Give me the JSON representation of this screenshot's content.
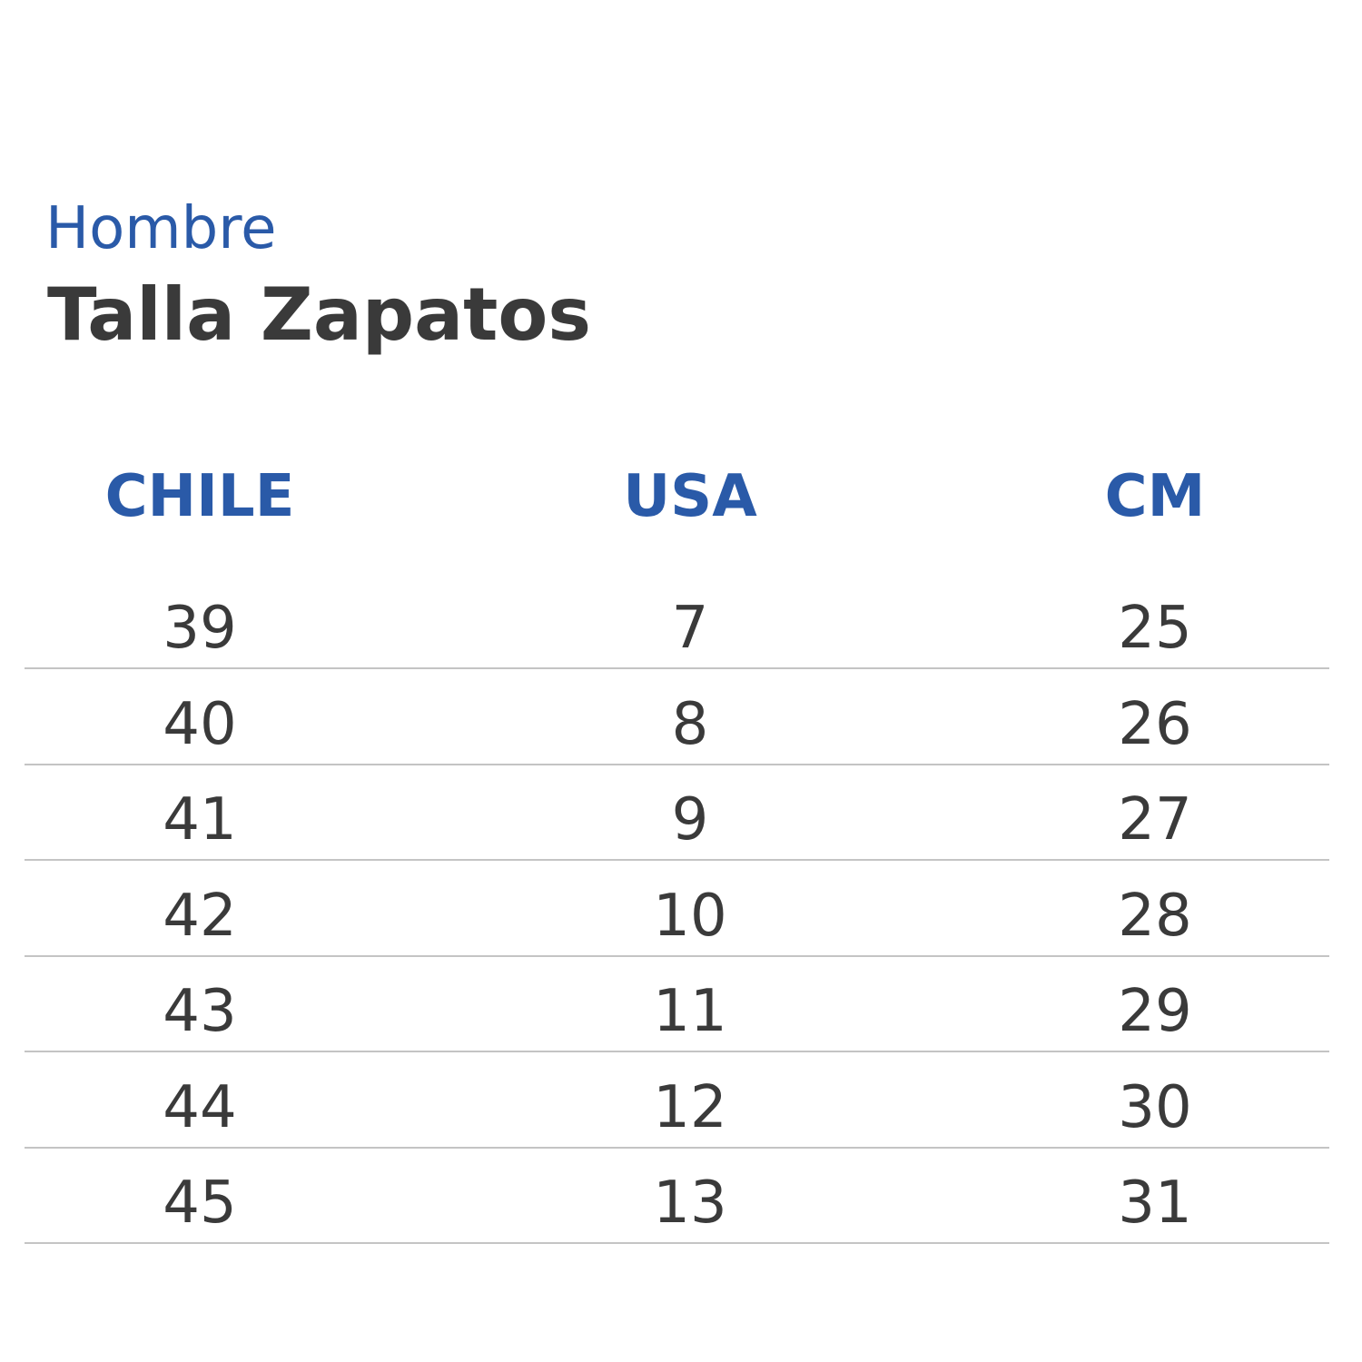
{
  "header": {
    "subtitle": "Hombre",
    "title": "Talla Zapatos"
  },
  "table": {
    "columns": [
      "CHILE",
      "USA",
      "CM"
    ],
    "rows": [
      [
        39,
        7,
        25
      ],
      [
        40,
        8,
        26
      ],
      [
        41,
        9,
        27
      ],
      [
        42,
        10,
        28
      ],
      [
        43,
        11,
        29
      ],
      [
        44,
        12,
        30
      ],
      [
        45,
        13,
        31
      ]
    ]
  }
}
